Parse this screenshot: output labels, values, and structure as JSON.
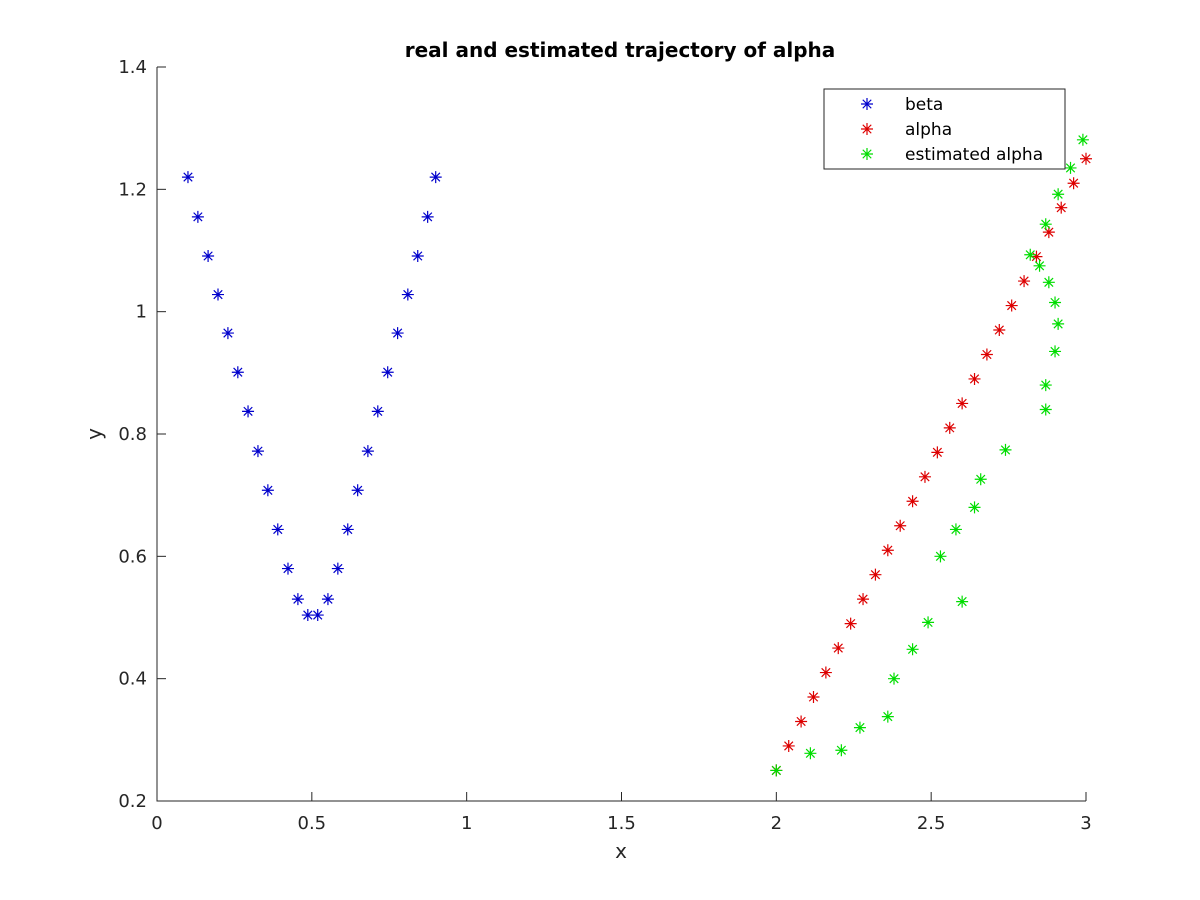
{
  "chart_data": {
    "type": "scatter",
    "title": "real and estimated trajectory of alpha",
    "xlabel": "x",
    "ylabel": "y",
    "xlim": [
      0,
      3
    ],
    "ylim": [
      0.2,
      1.4
    ],
    "xticks": [
      0,
      0.5,
      1,
      1.5,
      2,
      2.5,
      3
    ],
    "xtick_labels": [
      "0",
      "0.5",
      "1",
      "1.5",
      "2",
      "2.5",
      "3"
    ],
    "yticks": [
      0.2,
      0.4,
      0.6,
      0.8,
      1,
      1.2,
      1.4
    ],
    "ytick_labels": [
      "0.2",
      "0.4",
      "0.6",
      "0.8",
      "1",
      "1.2",
      "1.4"
    ],
    "grid": false,
    "legend_position": "top-right",
    "marker": "asterisk",
    "series": [
      {
        "name": "beta",
        "color": "#0000cc",
        "x": [
          0.1,
          0.132,
          0.165,
          0.197,
          0.229,
          0.261,
          0.294,
          0.326,
          0.358,
          0.39,
          0.423,
          0.455,
          0.487,
          0.519,
          0.552,
          0.584,
          0.616,
          0.648,
          0.681,
          0.713,
          0.745,
          0.777,
          0.81,
          0.842,
          0.874,
          0.9
        ],
        "y": [
          1.22,
          1.155,
          1.091,
          1.028,
          0.965,
          0.901,
          0.837,
          0.772,
          0.708,
          0.644,
          0.58,
          0.53,
          0.504,
          0.504,
          0.53,
          0.58,
          0.644,
          0.708,
          0.772,
          0.837,
          0.901,
          0.965,
          1.028,
          1.091,
          1.155,
          1.22
        ]
      },
      {
        "name": "alpha",
        "color": "#dd0000",
        "x": [
          2.0,
          2.04,
          2.08,
          2.12,
          2.16,
          2.2,
          2.24,
          2.28,
          2.32,
          2.36,
          2.4,
          2.44,
          2.48,
          2.52,
          2.56,
          2.6,
          2.64,
          2.68,
          2.72,
          2.76,
          2.8,
          2.84,
          2.88,
          2.92,
          2.96,
          3.0
        ],
        "y": [
          0.25,
          0.29,
          0.33,
          0.37,
          0.41,
          0.45,
          0.49,
          0.53,
          0.57,
          0.61,
          0.65,
          0.69,
          0.73,
          0.77,
          0.81,
          0.85,
          0.89,
          0.93,
          0.97,
          1.01,
          1.05,
          1.09,
          1.13,
          1.17,
          1.21,
          1.25
        ]
      },
      {
        "name": "estimated alpha",
        "color": "#00dd00",
        "x": [
          2.0,
          2.11,
          2.21,
          2.27,
          2.36,
          2.38,
          2.44,
          2.49,
          2.6,
          2.53,
          2.58,
          2.64,
          2.66,
          2.74,
          2.87,
          2.87,
          2.9,
          2.91,
          2.9,
          2.88,
          2.85,
          2.82,
          2.87,
          2.91,
          2.95,
          2.99
        ],
        "y": [
          0.25,
          0.278,
          0.283,
          0.32,
          0.338,
          0.4,
          0.448,
          0.492,
          0.526,
          0.6,
          0.644,
          0.68,
          0.726,
          0.774,
          0.84,
          0.88,
          0.935,
          0.98,
          1.015,
          1.048,
          1.075,
          1.093,
          1.143,
          1.192,
          1.235,
          1.281
        ]
      }
    ]
  }
}
